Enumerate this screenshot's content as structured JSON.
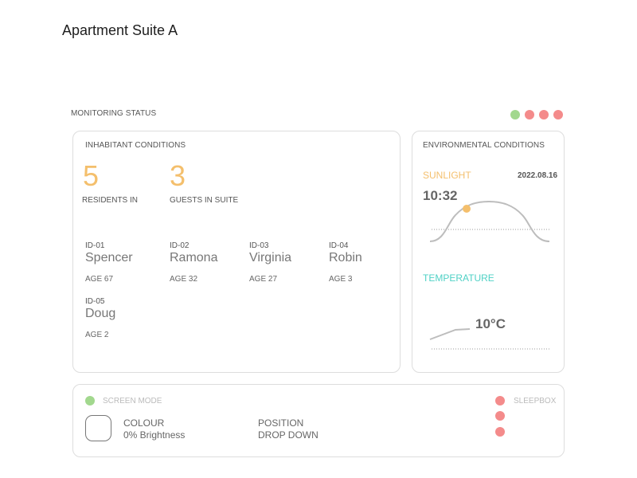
{
  "header": {
    "title": "Apartment Suite A"
  },
  "monitoring": {
    "label": "MONITORING STATUS",
    "status_colors": [
      "#a2d88e",
      "#f48b8b",
      "#f48b8b",
      "#f48b8b"
    ]
  },
  "inhabitants": {
    "label": "INHABITANT CONDITIONS",
    "residents_count": "5",
    "residents_label": "RESIDENTS IN",
    "guests_count": "3",
    "guests_label": "GUESTS IN SUITE",
    "people": [
      {
        "id": "ID-01",
        "name": "Spencer",
        "age": "AGE 67"
      },
      {
        "id": "ID-02",
        "name": "Ramona",
        "age": "AGE 32"
      },
      {
        "id": "ID-03",
        "name": "Virginia",
        "age": "AGE 27"
      },
      {
        "id": "ID-04",
        "name": "Robin",
        "age": "AGE 3"
      },
      {
        "id": "ID-05",
        "name": "Doug",
        "age": "AGE 2"
      }
    ]
  },
  "environment": {
    "label": "ENVIRONMENTAL CONDITIONS",
    "sunlight": {
      "label": "SUNLIGHT",
      "date": "2022.08.16",
      "time": "10:32",
      "accent": "#f4bf6c"
    },
    "temperature": {
      "label": "TEMPERATURE",
      "value": "10°C",
      "accent": "#4fd1c5"
    }
  },
  "controls": {
    "screen_mode": {
      "label": "SCREEN MODE",
      "indicator_color": "#a2d88e"
    },
    "colour": {
      "label": "COLOUR",
      "value": "0% Brightness"
    },
    "position": {
      "label": "POSITION",
      "value": "DROP DOWN"
    },
    "sleepbox": {
      "label": "SLEEPBOX",
      "indicator_colors": [
        "#f48b8b",
        "#f48b8b",
        "#f48b8b"
      ]
    }
  }
}
